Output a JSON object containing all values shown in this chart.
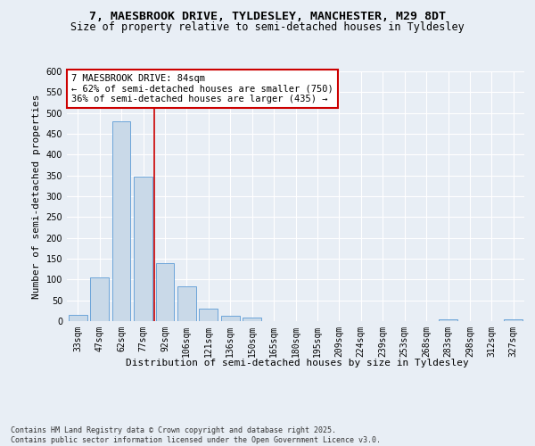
{
  "title_line1": "7, MAESBROOK DRIVE, TYLDESLEY, MANCHESTER, M29 8DT",
  "title_line2": "Size of property relative to semi-detached houses in Tyldesley",
  "xlabel": "Distribution of semi-detached houses by size in Tyldesley",
  "ylabel": "Number of semi-detached properties",
  "bar_labels": [
    "33sqm",
    "47sqm",
    "62sqm",
    "77sqm",
    "92sqm",
    "106sqm",
    "121sqm",
    "136sqm",
    "150sqm",
    "165sqm",
    "180sqm",
    "195sqm",
    "209sqm",
    "224sqm",
    "239sqm",
    "253sqm",
    "268sqm",
    "283sqm",
    "298sqm",
    "312sqm",
    "327sqm"
  ],
  "bar_values": [
    15,
    105,
    480,
    348,
    140,
    83,
    30,
    12,
    8,
    0,
    0,
    0,
    0,
    0,
    0,
    0,
    0,
    5,
    0,
    0,
    5
  ],
  "bar_color": "#c9d9e8",
  "bar_edge_color": "#5b9bd5",
  "vline_color": "#cc0000",
  "annotation_text": "7 MAESBROOK DRIVE: 84sqm\n← 62% of semi-detached houses are smaller (750)\n36% of semi-detached houses are larger (435) →",
  "annotation_box_color": "#ffffff",
  "annotation_box_edge_color": "#cc0000",
  "ylim": [
    0,
    600
  ],
  "yticks": [
    0,
    50,
    100,
    150,
    200,
    250,
    300,
    350,
    400,
    450,
    500,
    550,
    600
  ],
  "footer_text": "Contains HM Land Registry data © Crown copyright and database right 2025.\nContains public sector information licensed under the Open Government Licence v3.0.",
  "bg_color": "#e8eef5",
  "plot_bg_color": "#e8eef5",
  "grid_color": "#ffffff",
  "title_fontsize": 9.5,
  "subtitle_fontsize": 8.5,
  "axis_label_fontsize": 8,
  "tick_fontsize": 7,
  "annotation_fontsize": 7.5,
  "footer_fontsize": 6
}
